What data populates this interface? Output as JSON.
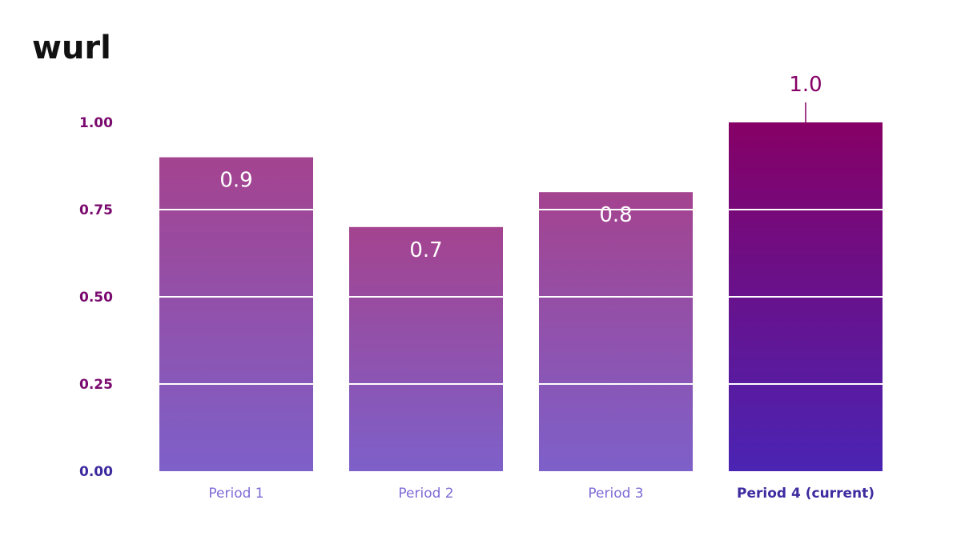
{
  "logo": {
    "text": "wurl"
  },
  "colors": {
    "axis_label": "#7a0a6e",
    "axis_zero": "#3d2a9e",
    "category_label": "#7f6bd6",
    "category_label_current": "#3e2ba0",
    "bar_top": "#a4438f",
    "bar_bottom": "#7d60c9",
    "current_top": "#860066",
    "current_bottom": "#4a24b3",
    "value_label_inside": "#ffffff",
    "value_label_above": "#860066",
    "gridline": "#ffffff"
  },
  "chart_data": {
    "type": "bar",
    "categories": [
      "Period 1",
      "Period 2",
      "Period 3",
      "Period 4 (current)"
    ],
    "values": [
      0.9,
      0.7,
      0.8,
      1.0
    ],
    "value_labels": [
      "0.9",
      "0.7",
      "0.8",
      "1.0"
    ],
    "highlighted_category": "Period 4 (current)",
    "ylim": [
      0,
      1
    ],
    "yticks": [
      "0.00",
      "0.25",
      "0.50",
      "0.75",
      "1.00"
    ],
    "title": "",
    "xlabel": "",
    "ylabel": "",
    "grid": true
  }
}
